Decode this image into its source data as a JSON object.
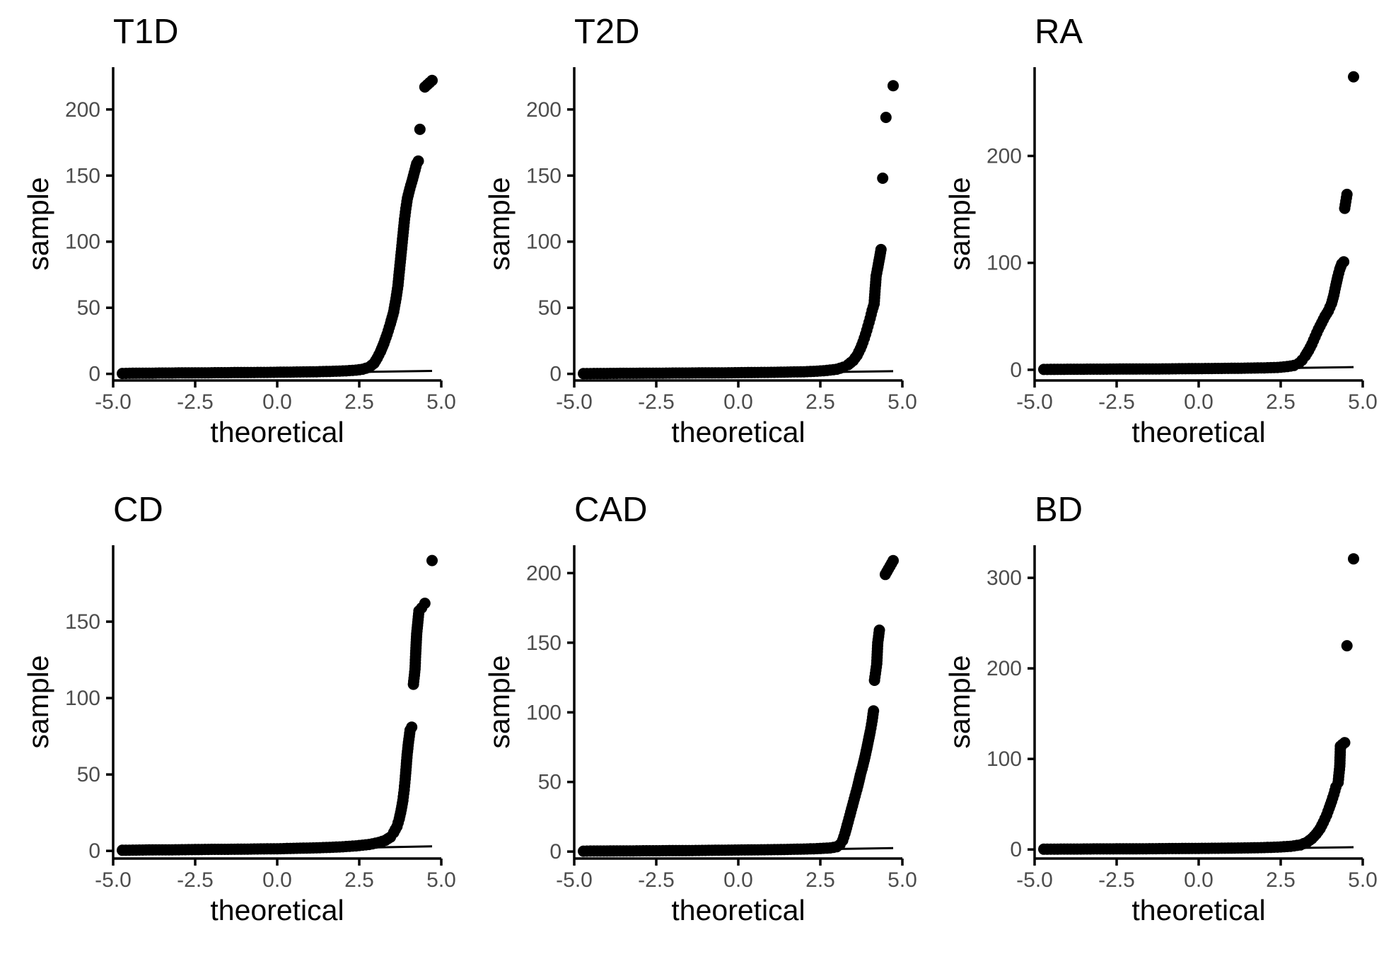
{
  "chart_data": [
    {
      "type": "scatter",
      "title": "T1D",
      "xlabel": "theoretical",
      "ylabel": "sample",
      "xlim": [
        -5.0,
        5.0
      ],
      "ylim": [
        -5,
        232
      ],
      "xticks": [
        "-5.0",
        "-2.5",
        "0.0",
        "2.5",
        "5.0"
      ],
      "yticks": [
        "0",
        "50",
        "100",
        "150",
        "200"
      ],
      "grid": false,
      "line": {
        "x": [
          -4.72,
          4.72
        ],
        "y": [
          -1.2,
          2.2
        ]
      },
      "points": [
        [
          -4.72,
          0.3
        ],
        [
          -4.5,
          0.4
        ],
        [
          -4.2,
          0.5
        ],
        [
          -3.9,
          0.5
        ],
        [
          -3.6,
          0.6
        ],
        [
          -3.3,
          0.6
        ],
        [
          -3.0,
          0.7
        ],
        [
          -2.7,
          0.7
        ],
        [
          -2.4,
          0.8
        ],
        [
          -2.1,
          0.8
        ],
        [
          -1.8,
          0.9
        ],
        [
          -1.5,
          0.9
        ],
        [
          -1.2,
          1.0
        ],
        [
          -0.9,
          1.0
        ],
        [
          -0.6,
          1.1
        ],
        [
          -0.3,
          1.1
        ],
        [
          0.0,
          1.2
        ],
        [
          0.3,
          1.3
        ],
        [
          0.6,
          1.4
        ],
        [
          0.9,
          1.5
        ],
        [
          1.2,
          1.6
        ],
        [
          1.5,
          1.8
        ],
        [
          1.8,
          2.0
        ],
        [
          2.1,
          2.3
        ],
        [
          2.4,
          2.8
        ],
        [
          2.6,
          3.5
        ],
        [
          2.8,
          5
        ],
        [
          2.95,
          8
        ],
        [
          3.05,
          12
        ],
        [
          3.15,
          17
        ],
        [
          3.25,
          23
        ],
        [
          3.35,
          30
        ],
        [
          3.45,
          38
        ],
        [
          3.55,
          47
        ],
        [
          3.62,
          57
        ],
        [
          3.68,
          67
        ],
        [
          3.72,
          77
        ],
        [
          3.76,
          87
        ],
        [
          3.8,
          97
        ],
        [
          3.84,
          107
        ],
        [
          3.88,
          117
        ],
        [
          3.92,
          125
        ],
        [
          3.97,
          133
        ],
        [
          4.04,
          140
        ],
        [
          4.1,
          145
        ],
        [
          4.25,
          159
        ],
        [
          4.3,
          161
        ],
        [
          4.35,
          185
        ],
        [
          4.5,
          217
        ],
        [
          4.72,
          222
        ]
      ]
    },
    {
      "type": "scatter",
      "title": "T2D",
      "xlabel": "theoretical",
      "ylabel": "sample",
      "xlim": [
        -5.0,
        5.0
      ],
      "ylim": [
        -5,
        232
      ],
      "xticks": [
        "-5.0",
        "-2.5",
        "0.0",
        "2.5",
        "5.0"
      ],
      "yticks": [
        "0",
        "50",
        "100",
        "150",
        "200"
      ],
      "grid": false,
      "line": {
        "x": [
          -4.72,
          4.72
        ],
        "y": [
          -1.0,
          2.0
        ]
      },
      "points": [
        [
          -4.72,
          0.2
        ],
        [
          -4.4,
          0.3
        ],
        [
          -4.0,
          0.3
        ],
        [
          -3.6,
          0.4
        ],
        [
          -3.2,
          0.4
        ],
        [
          -2.8,
          0.5
        ],
        [
          -2.4,
          0.5
        ],
        [
          -2.0,
          0.6
        ],
        [
          -1.6,
          0.6
        ],
        [
          -1.2,
          0.7
        ],
        [
          -0.8,
          0.7
        ],
        [
          -0.4,
          0.8
        ],
        [
          0.0,
          0.9
        ],
        [
          0.4,
          1.0
        ],
        [
          0.8,
          1.1
        ],
        [
          1.2,
          1.2
        ],
        [
          1.6,
          1.4
        ],
        [
          2.0,
          1.6
        ],
        [
          2.4,
          2.0
        ],
        [
          2.7,
          2.6
        ],
        [
          3.0,
          3.5
        ],
        [
          3.2,
          5
        ],
        [
          3.35,
          7
        ],
        [
          3.5,
          10
        ],
        [
          3.62,
          14
        ],
        [
          3.72,
          19
        ],
        [
          3.8,
          24
        ],
        [
          3.88,
          30
        ],
        [
          3.95,
          36
        ],
        [
          4.02,
          42
        ],
        [
          4.08,
          48
        ],
        [
          4.14,
          53
        ],
        [
          4.18,
          67
        ],
        [
          4.2,
          74
        ],
        [
          4.24,
          79
        ],
        [
          4.35,
          94
        ],
        [
          4.4,
          148
        ],
        [
          4.5,
          194
        ],
        [
          4.72,
          218
        ]
      ]
    },
    {
      "type": "scatter",
      "title": "RA",
      "xlabel": "theoretical",
      "ylabel": "sample",
      "xlim": [
        -5.0,
        5.0
      ],
      "ylim": [
        -10,
        283
      ],
      "xticks": [
        "-5.0",
        "-2.5",
        "0.0",
        "2.5",
        "5.0"
      ],
      "yticks": [
        "0",
        "100",
        "200"
      ],
      "grid": false,
      "line": {
        "x": [
          -4.72,
          4.72
        ],
        "y": [
          -1.5,
          2.5
        ]
      },
      "points": [
        [
          -4.72,
          0.3
        ],
        [
          -4.4,
          0.4
        ],
        [
          -4.0,
          0.5
        ],
        [
          -3.6,
          0.5
        ],
        [
          -3.2,
          0.6
        ],
        [
          -2.8,
          0.6
        ],
        [
          -2.4,
          0.7
        ],
        [
          -2.0,
          0.7
        ],
        [
          -1.6,
          0.8
        ],
        [
          -1.2,
          0.8
        ],
        [
          -0.8,
          0.9
        ],
        [
          -0.4,
          1.0
        ],
        [
          0.0,
          1.1
        ],
        [
          0.4,
          1.2
        ],
        [
          0.8,
          1.3
        ],
        [
          1.2,
          1.4
        ],
        [
          1.6,
          1.6
        ],
        [
          2.0,
          1.8
        ],
        [
          2.4,
          2.2
        ],
        [
          2.7,
          3
        ],
        [
          2.9,
          4
        ],
        [
          3.05,
          6
        ],
        [
          3.15,
          9
        ],
        [
          3.25,
          13
        ],
        [
          3.35,
          18
        ],
        [
          3.45,
          24
        ],
        [
          3.55,
          31
        ],
        [
          3.65,
          38
        ],
        [
          3.75,
          44
        ],
        [
          3.85,
          50
        ],
        [
          3.95,
          55
        ],
        [
          4.05,
          62
        ],
        [
          4.12,
          70
        ],
        [
          4.18,
          79
        ],
        [
          4.24,
          87
        ],
        [
          4.3,
          94
        ],
        [
          4.36,
          99
        ],
        [
          4.42,
          101
        ],
        [
          4.45,
          151
        ],
        [
          4.52,
          164
        ],
        [
          4.72,
          274
        ]
      ]
    },
    {
      "type": "scatter",
      "title": "CD",
      "xlabel": "theoretical",
      "ylabel": "sample",
      "xlim": [
        -5.0,
        5.0
      ],
      "ylim": [
        -5,
        200
      ],
      "xticks": [
        "-5.0",
        "-2.5",
        "0.0",
        "2.5",
        "5.0"
      ],
      "yticks": [
        "0",
        "50",
        "100",
        "150"
      ],
      "grid": false,
      "line": {
        "x": [
          -4.72,
          4.72
        ],
        "y": [
          -1.0,
          3.0
        ]
      },
      "points": [
        [
          -4.72,
          0.4
        ],
        [
          -4.4,
          0.5
        ],
        [
          -4.0,
          0.6
        ],
        [
          -3.6,
          0.7
        ],
        [
          -3.2,
          0.7
        ],
        [
          -2.8,
          0.8
        ],
        [
          -2.4,
          0.9
        ],
        [
          -2.0,
          1.0
        ],
        [
          -1.6,
          1.0
        ],
        [
          -1.2,
          1.1
        ],
        [
          -0.8,
          1.2
        ],
        [
          -0.4,
          1.3
        ],
        [
          0.0,
          1.4
        ],
        [
          0.4,
          1.6
        ],
        [
          0.8,
          1.8
        ],
        [
          1.2,
          2.0
        ],
        [
          1.6,
          2.3
        ],
        [
          2.0,
          2.7
        ],
        [
          2.4,
          3.3
        ],
        [
          2.8,
          4.2
        ],
        [
          3.1,
          5.5
        ],
        [
          3.3,
          7
        ],
        [
          3.45,
          9
        ],
        [
          3.55,
          12
        ],
        [
          3.65,
          16
        ],
        [
          3.72,
          21
        ],
        [
          3.78,
          27
        ],
        [
          3.83,
          33
        ],
        [
          3.87,
          40
        ],
        [
          3.9,
          47
        ],
        [
          3.93,
          55
        ],
        [
          3.96,
          63
        ],
        [
          4.0,
          71
        ],
        [
          4.05,
          79
        ],
        [
          4.1,
          81
        ],
        [
          4.15,
          109
        ],
        [
          4.2,
          119
        ],
        [
          4.22,
          129
        ],
        [
          4.25,
          142
        ],
        [
          4.32,
          157
        ],
        [
          4.4,
          159
        ],
        [
          4.5,
          162
        ],
        [
          4.72,
          190
        ]
      ]
    },
    {
      "type": "scatter",
      "title": "CAD",
      "xlabel": "theoretical",
      "ylabel": "sample",
      "xlim": [
        -5.0,
        5.0
      ],
      "ylim": [
        -5,
        220
      ],
      "xticks": [
        "-5.0",
        "-2.5",
        "0.0",
        "2.5",
        "5.0"
      ],
      "yticks": [
        "0",
        "50",
        "100",
        "150",
        "200"
      ],
      "grid": false,
      "line": {
        "x": [
          -4.72,
          4.72
        ],
        "y": [
          -1.0,
          2.5
        ]
      },
      "points": [
        [
          -4.72,
          0.3
        ],
        [
          -4.4,
          0.4
        ],
        [
          -4.0,
          0.4
        ],
        [
          -3.6,
          0.5
        ],
        [
          -3.2,
          0.5
        ],
        [
          -2.8,
          0.6
        ],
        [
          -2.4,
          0.6
        ],
        [
          -2.0,
          0.7
        ],
        [
          -1.6,
          0.7
        ],
        [
          -1.2,
          0.8
        ],
        [
          -0.8,
          0.9
        ],
        [
          -0.4,
          1.0
        ],
        [
          0.0,
          1.1
        ],
        [
          0.4,
          1.2
        ],
        [
          0.8,
          1.3
        ],
        [
          1.2,
          1.4
        ],
        [
          1.6,
          1.6
        ],
        [
          2.0,
          1.8
        ],
        [
          2.4,
          2.1
        ],
        [
          2.8,
          2.6
        ],
        [
          3.0,
          3.5
        ],
        [
          3.1,
          5
        ],
        [
          3.18,
          8
        ],
        [
          3.25,
          13
        ],
        [
          3.32,
          19
        ],
        [
          3.4,
          26
        ],
        [
          3.48,
          33
        ],
        [
          3.56,
          40
        ],
        [
          3.64,
          47
        ],
        [
          3.72,
          55
        ],
        [
          3.8,
          62
        ],
        [
          3.88,
          70
        ],
        [
          3.95,
          78
        ],
        [
          4.02,
          86
        ],
        [
          4.08,
          94
        ],
        [
          4.12,
          101
        ],
        [
          4.15,
          123
        ],
        [
          4.22,
          135
        ],
        [
          4.25,
          150
        ],
        [
          4.3,
          159
        ],
        [
          4.48,
          199
        ],
        [
          4.72,
          209
        ]
      ]
    },
    {
      "type": "scatter",
      "title": "BD",
      "xlabel": "theoretical",
      "ylabel": "sample",
      "xlim": [
        -5.0,
        5.0
      ],
      "ylim": [
        -10,
        336
      ],
      "xticks": [
        "-5.0",
        "-2.5",
        "0.0",
        "2.5",
        "5.0"
      ],
      "yticks": [
        "0",
        "100",
        "200",
        "300"
      ],
      "grid": false,
      "line": {
        "x": [
          -4.72,
          4.72
        ],
        "y": [
          -2.0,
          2.5
        ]
      },
      "points": [
        [
          -4.72,
          0.3
        ],
        [
          -4.4,
          0.4
        ],
        [
          -4.0,
          0.5
        ],
        [
          -3.6,
          0.5
        ],
        [
          -3.2,
          0.6
        ],
        [
          -2.8,
          0.6
        ],
        [
          -2.4,
          0.7
        ],
        [
          -2.0,
          0.7
        ],
        [
          -1.6,
          0.8
        ],
        [
          -1.2,
          0.9
        ],
        [
          -0.8,
          1.0
        ],
        [
          -0.4,
          1.1
        ],
        [
          0.0,
          1.2
        ],
        [
          0.4,
          1.3
        ],
        [
          0.8,
          1.4
        ],
        [
          1.2,
          1.6
        ],
        [
          1.6,
          1.8
        ],
        [
          2.0,
          2.1
        ],
        [
          2.4,
          2.6
        ],
        [
          2.8,
          3.5
        ],
        [
          3.1,
          5
        ],
        [
          3.3,
          8
        ],
        [
          3.45,
          12
        ],
        [
          3.58,
          17
        ],
        [
          3.7,
          23
        ],
        [
          3.8,
          30
        ],
        [
          3.9,
          38
        ],
        [
          3.98,
          46
        ],
        [
          4.05,
          53
        ],
        [
          4.12,
          61
        ],
        [
          4.18,
          69
        ],
        [
          4.25,
          74
        ],
        [
          4.3,
          92
        ],
        [
          4.32,
          114
        ],
        [
          4.38,
          116
        ],
        [
          4.45,
          118
        ],
        [
          4.52,
          225
        ],
        [
          4.72,
          321
        ]
      ]
    }
  ]
}
